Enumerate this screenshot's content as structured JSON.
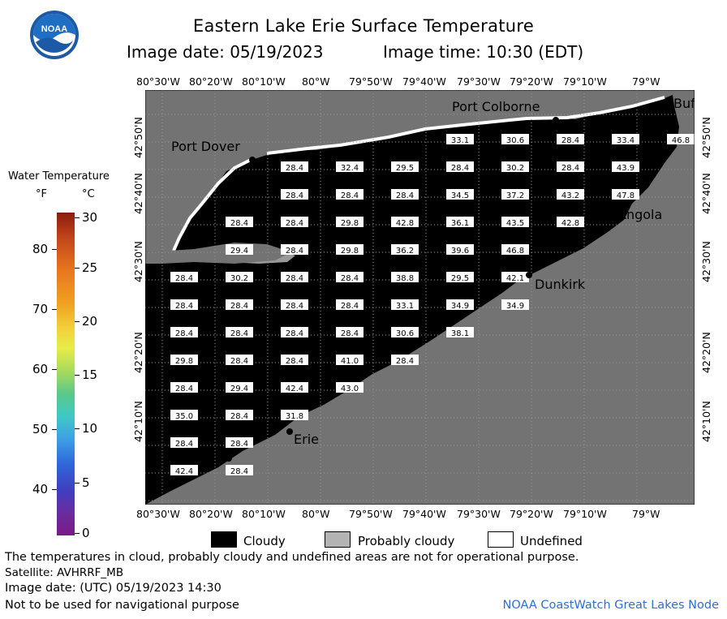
{
  "header": {
    "title": "Eastern Lake Erie Surface Temperature",
    "image_date": "Image date: 05/19/2023",
    "image_time": "Image time: 10:30 (EDT)"
  },
  "logo": {
    "text": "NOAA"
  },
  "legend": {
    "title": "Water Temperature",
    "unit_f": "°F",
    "unit_c": "°C",
    "f_ticks": [
      "80",
      "70",
      "60",
      "50",
      "40"
    ],
    "c_ticks": [
      "30",
      "25",
      "20",
      "15",
      "10",
      "5",
      "0"
    ],
    "cloudy": "Cloudy",
    "prob_cloudy": "Probably cloudy",
    "undefined": "Undefined"
  },
  "axes": {
    "top_labels": [
      "80°30'W",
      "80°20'W",
      "80°10'W",
      "80°W",
      "79°50'W",
      "79°40'W",
      "79°30'W",
      "79°20'W",
      "79°10'W",
      "79°W"
    ],
    "bottom_labels": [
      "80°30'W",
      "80°20'W",
      "80°10'W",
      "80°W",
      "79°50'W",
      "79°40'W",
      "79°30'W",
      "79°20'W",
      "79°10'W",
      "79°W"
    ],
    "left_labels": [
      "42°50'N",
      "42°40'N",
      "42°30'N",
      "42°20'N",
      "42°10'N"
    ],
    "right_labels": [
      "42°50'N",
      "42°40'N",
      "42°30'N",
      "42°20'N",
      "42°10'N"
    ]
  },
  "places": {
    "port_colborne": "Port Colborne",
    "buffalo": "Buf",
    "port_dover": "Port Dover",
    "angola": "Angola",
    "dunkirk": "Dunkirk",
    "erie": "Erie"
  },
  "temps": [
    [
      "33.1",
      "30.6",
      "28.4",
      "33.4",
      "46.8"
    ],
    [
      "28.4",
      "32.4",
      "29.5",
      "28.4",
      "30.2",
      "28.4",
      "43.9"
    ],
    [
      "28.4",
      "28.4",
      "28.4",
      "34.5",
      "37.2",
      "43.2",
      "47.8"
    ],
    [
      "28.4",
      "28.4",
      "29.8",
      "42.8",
      "36.1",
      "43.5",
      "42.8"
    ],
    [
      "29.4",
      "28.4",
      "29.8",
      "36.2",
      "39.6",
      "46.8"
    ],
    [
      "28.4",
      "30.2",
      "28.4",
      "28.4",
      "38.8",
      "29.5",
      "42.1"
    ],
    [
      "28.4",
      "28.4",
      "28.4",
      "28.4",
      "33.1",
      "34.9",
      "34.9"
    ],
    [
      "28.4",
      "28.4",
      "28.4",
      "28.4",
      "30.6",
      "38.1"
    ],
    [
      "29.8",
      "28.4",
      "28.4",
      "41.0",
      "28.4"
    ],
    [
      "28.4",
      "29.4",
      "42.4",
      "43.0"
    ],
    [
      "35.0",
      "28.4",
      "31.8"
    ],
    [
      "28.4",
      "28.4"
    ],
    [
      "42.4",
      "28.4"
    ]
  ],
  "notes": {
    "line1": "The temperatures in cloud, probably cloudy and undefined areas are not for operational purpose.",
    "line2": "Satellite: AVHRRF_MB",
    "line3": "Image date: (UTC) 05/19/2023  14:30",
    "line4": "Not to be used for navigational purpose",
    "credit": "NOAA CoastWatch Great Lakes Node"
  },
  "colors": {
    "land": "#737373",
    "lake": "#000000",
    "grid": "#9a9a9a",
    "credit": "#2f6fd0"
  }
}
